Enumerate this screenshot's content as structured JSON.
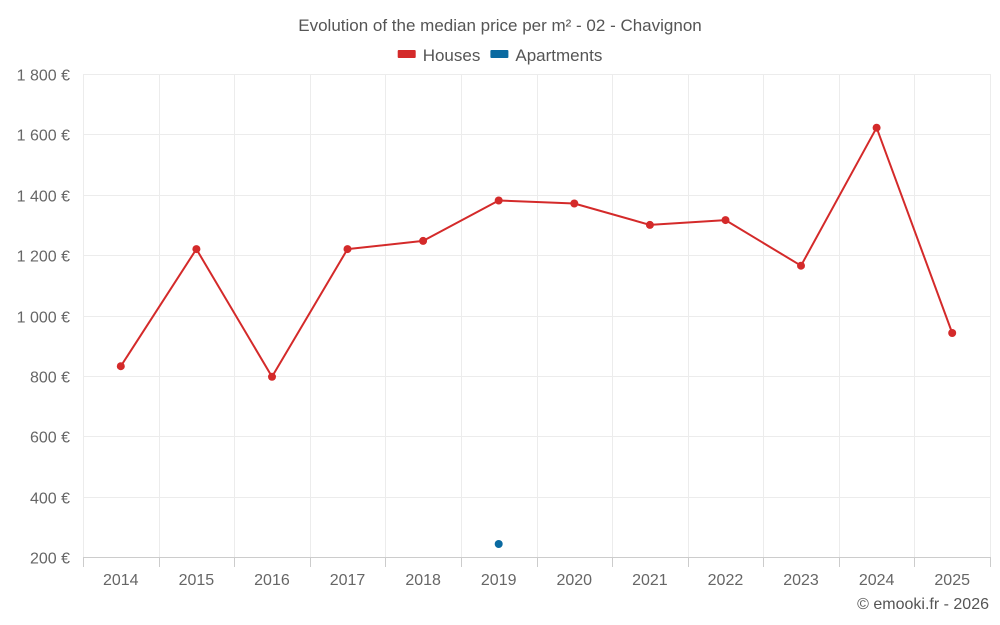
{
  "chart_data": {
    "type": "line",
    "title": "Evolution of the median price per m² - 02 - Chavignon",
    "xlabel": "",
    "ylabel": "",
    "categories": [
      "2014",
      "2015",
      "2016",
      "2017",
      "2018",
      "2019",
      "2020",
      "2021",
      "2022",
      "2023",
      "2024",
      "2025"
    ],
    "ylim": [
      200,
      1800
    ],
    "yticks": [
      200,
      400,
      600,
      800,
      1000,
      1200,
      1400,
      1600,
      1800
    ],
    "ytick_labels": [
      "200 €",
      "400 €",
      "600 €",
      "800 €",
      "1 000 €",
      "1 200 €",
      "1 400 €",
      "1 600 €",
      "1 800 €"
    ],
    "series": [
      {
        "name": "Houses",
        "color": "#d42a2a",
        "values": [
          832,
          1220,
          797,
          1220,
          1247,
          1381,
          1371,
          1300,
          1316,
          1165,
          1622,
          942
        ]
      },
      {
        "name": "Apartments",
        "color": "#0a6aa1",
        "values": [
          null,
          null,
          null,
          null,
          null,
          243,
          null,
          null,
          null,
          null,
          null,
          null
        ]
      }
    ],
    "legend_position": "top-center",
    "grid": true
  },
  "credit": "© emooki.fr - 2026"
}
